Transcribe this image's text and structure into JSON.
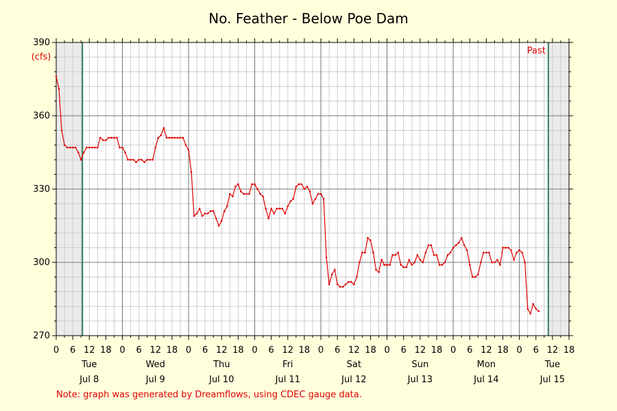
{
  "chart_data": {
    "type": "line",
    "title": "No. Feather - Below Poe Dam",
    "ylabel": "(cfs)",
    "ylim": [
      270,
      390
    ],
    "y_ticks": [
      270,
      300,
      330,
      360,
      390
    ],
    "x_unit": "hours since 00:00 Tue Jul 8",
    "xlim": [
      0,
      186
    ],
    "x_hour_ticks": [
      "0",
      "6",
      "12",
      "18",
      "0",
      "6",
      "12",
      "18",
      "0",
      "6",
      "12",
      "18",
      "0",
      "6",
      "12",
      "18",
      "0",
      "6",
      "12",
      "18",
      "0",
      "6",
      "12",
      "18",
      "0",
      "6",
      "12",
      "18",
      "0",
      "6",
      "12",
      "18"
    ],
    "day_labels": [
      {
        "day": "Tue",
        "date": "Jul 8"
      },
      {
        "day": "Wed",
        "date": "Jul 9"
      },
      {
        "day": "Thu",
        "date": "Jul 10"
      },
      {
        "day": "Fri",
        "date": "Jul 11"
      },
      {
        "day": "Sat",
        "date": "Jul 12"
      },
      {
        "day": "Sun",
        "date": "Jul 13"
      },
      {
        "day": "Mon",
        "date": "Jul 14"
      },
      {
        "day": "Tue",
        "date": "Jul 15"
      }
    ],
    "past_label": "Past",
    "marker_lines_x": [
      9.5,
      178.5
    ],
    "grid": true,
    "colors": {
      "series": "#e00000",
      "marker_line": "#2e7d5b",
      "background": "#ffffdc",
      "plot_background": "#ffffff",
      "shaded_region": "#ebebeb",
      "grid": "#cccccc"
    },
    "series": [
      {
        "x": [
          0,
          1,
          2,
          3,
          4,
          5,
          6,
          7,
          8,
          9,
          10,
          11,
          12,
          13,
          14,
          15,
          16,
          17,
          18,
          19,
          20,
          21,
          22,
          23,
          24,
          25,
          26,
          27,
          28,
          29,
          30,
          31,
          32,
          33,
          34,
          35,
          36,
          37,
          38,
          39,
          40,
          41,
          42,
          43,
          44,
          45,
          46,
          47,
          48,
          49,
          50,
          51,
          52,
          53,
          54,
          55,
          56,
          57,
          58,
          59,
          60,
          61,
          62,
          63,
          64,
          65,
          66,
          67,
          68,
          69,
          70,
          71,
          72,
          73,
          74,
          75,
          76,
          77,
          78,
          79,
          80,
          81,
          82,
          83,
          84,
          85,
          86,
          87,
          88,
          89,
          90,
          91,
          92,
          93,
          94,
          95,
          96,
          97,
          98,
          99,
          100,
          101,
          102,
          103,
          104,
          105,
          106,
          107,
          108,
          109,
          110,
          111,
          112,
          113,
          114,
          115,
          116,
          117,
          118,
          119,
          120,
          121,
          122,
          123,
          124,
          125,
          126,
          127,
          128,
          129,
          130,
          131,
          132,
          133,
          134,
          135,
          136,
          137,
          138,
          139,
          140,
          141,
          142,
          143,
          144,
          145,
          146,
          147,
          148,
          149,
          150,
          151,
          152,
          153,
          154,
          155,
          156,
          157,
          158,
          159,
          160,
          161,
          162,
          163,
          164,
          165,
          166,
          167,
          168,
          169,
          170,
          171,
          172,
          173,
          174,
          175
        ],
        "values": [
          376,
          371,
          354,
          348,
          347,
          347,
          347,
          347,
          345,
          342,
          345,
          347,
          347,
          347,
          347,
          347,
          351,
          350,
          350,
          351,
          351,
          351,
          351,
          347,
          347,
          345,
          342,
          342,
          342,
          341,
          342,
          342,
          341,
          342,
          342,
          342,
          347,
          351,
          352,
          355,
          351,
          351,
          351,
          351,
          351,
          351,
          351,
          348,
          346,
          337,
          319,
          320,
          322,
          319,
          320,
          320,
          321,
          321,
          318,
          315,
          317,
          321,
          323,
          328,
          327,
          331,
          332,
          329,
          328,
          328,
          328,
          332,
          332,
          330,
          328,
          327,
          322,
          318,
          322,
          320,
          322,
          322,
          322,
          320,
          323,
          325,
          326,
          331,
          332,
          332,
          330,
          331,
          329,
          324,
          326,
          328,
          328,
          326,
          302,
          291,
          295,
          297,
          291,
          290,
          290,
          291,
          292,
          292,
          291,
          294,
          300,
          304,
          304,
          310,
          309,
          304,
          297,
          296,
          301,
          299,
          299,
          299,
          303,
          303,
          304,
          299,
          298,
          298,
          301,
          299,
          300,
          303,
          301,
          300,
          304,
          307,
          307,
          303,
          303,
          299,
          299,
          300,
          303,
          304,
          306,
          307,
          308,
          310,
          307,
          305,
          299,
          294,
          294,
          295,
          300,
          304,
          304,
          304,
          300,
          300,
          301,
          299,
          306,
          306,
          306,
          305,
          301,
          304,
          305,
          304,
          300,
          281,
          279,
          283,
          281,
          280
        ]
      }
    ],
    "note": "Note: graph was generated by Dreamflows, using CDEC gauge data."
  }
}
